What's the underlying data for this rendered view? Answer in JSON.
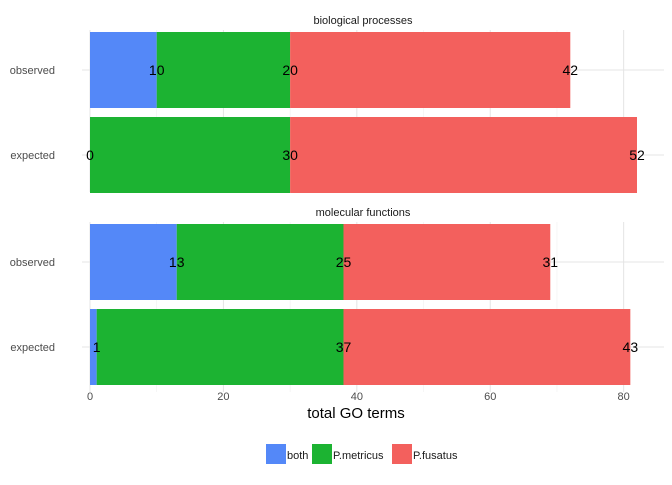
{
  "chart_data": {
    "type": "bar",
    "orientation": "horizontal",
    "stacked": true,
    "xlabel": "total GO terms",
    "xlim": [
      0,
      82
    ],
    "xticks": [
      0,
      20,
      40,
      60,
      80
    ],
    "grid": true,
    "legend_position": "bottom",
    "series_names": [
      "both",
      "P.metricus",
      "P.fusatus"
    ],
    "colors": {
      "both": "#5488F8",
      "P.metricus": "#1CB332",
      "P.fusatus": "#F3605D"
    },
    "panels": [
      {
        "title": "biological processes",
        "categories": [
          "observed",
          "expected"
        ],
        "series": [
          {
            "name": "both",
            "values": [
              10,
              0
            ]
          },
          {
            "name": "P.metricus",
            "values": [
              20,
              30
            ]
          },
          {
            "name": "P.fusatus",
            "values": [
              42,
              52
            ]
          }
        ]
      },
      {
        "title": "molecular functions",
        "categories": [
          "observed",
          "expected"
        ],
        "series": [
          {
            "name": "both",
            "values": [
              13,
              1
            ]
          },
          {
            "name": "P.metricus",
            "values": [
              25,
              37
            ]
          },
          {
            "name": "P.fusatus",
            "values": [
              31,
              43
            ]
          }
        ]
      }
    ]
  }
}
